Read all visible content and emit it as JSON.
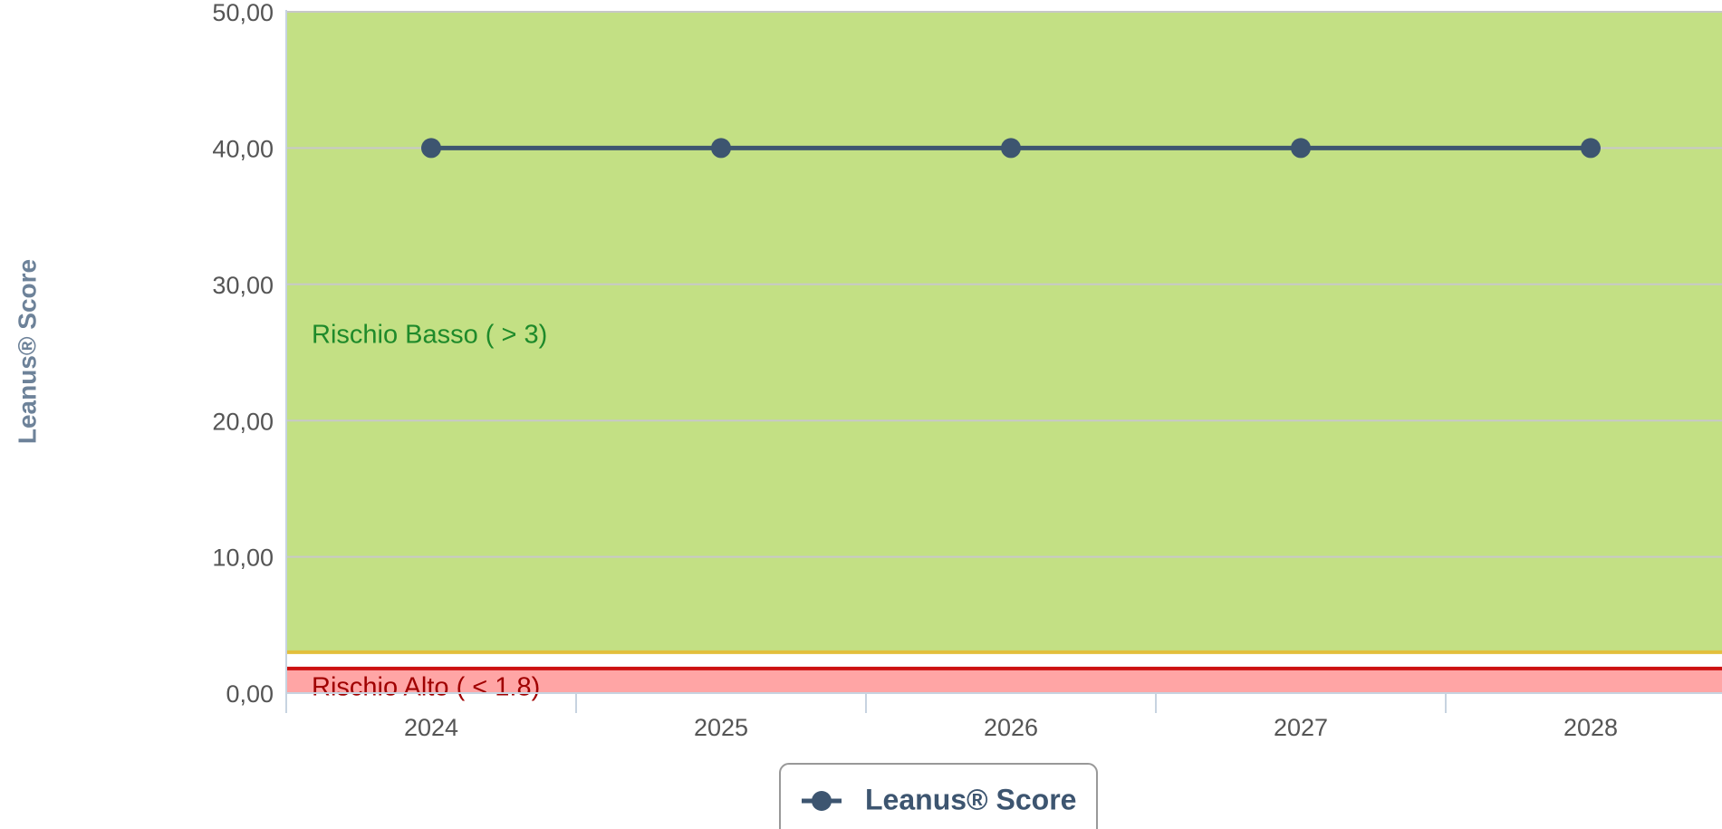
{
  "chart_data": {
    "type": "line",
    "y_axis_title": "Leanus® Score",
    "categories": [
      "2024",
      "2025",
      "2026",
      "2027",
      "2028"
    ],
    "series": [
      {
        "name": "Leanus® Score",
        "color": "#3d5570",
        "values": [
          40,
          40,
          40,
          40,
          40
        ]
      }
    ],
    "ylim": [
      0,
      50
    ],
    "yticks": [
      {
        "value": 0,
        "label": "0,00"
      },
      {
        "value": 10,
        "label": "10,00"
      },
      {
        "value": 20,
        "label": "20,00"
      },
      {
        "value": 30,
        "label": "30,00"
      },
      {
        "value": 40,
        "label": "40,00"
      },
      {
        "value": 50,
        "label": "50,00"
      }
    ],
    "grid": true,
    "plot_bands": [
      {
        "from": 3,
        "to": 50,
        "color": "#c3e084",
        "label": "Rischio Basso ( > 3)",
        "label_color": "#1e8a2a"
      },
      {
        "from": 0,
        "to": 1.8,
        "color": "#ffa5a5",
        "label": "Rischio Alto ( < 1.8)",
        "label_color": "#a00000"
      }
    ],
    "plot_lines": [
      {
        "value": 3,
        "color": "#e2bf3c"
      },
      {
        "value": 1.8,
        "color": "#cc1111"
      }
    ],
    "legend": "bottom"
  }
}
